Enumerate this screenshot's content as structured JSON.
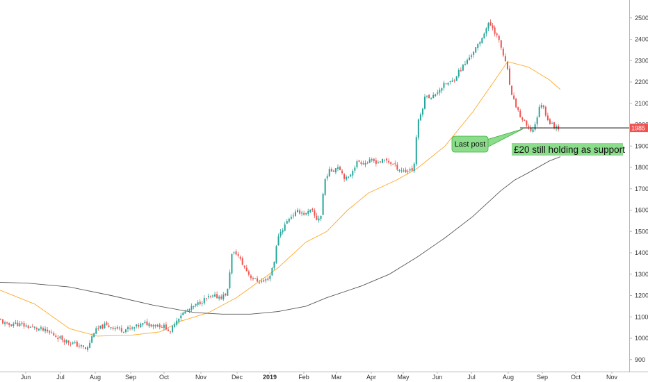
{
  "chart_data": {
    "type": "candlestick",
    "title": "",
    "xlabel": "",
    "ylabel": "",
    "x_ticks": [
      "Jun",
      "Jul",
      "Aug",
      "Sep",
      "Oct",
      "Nov",
      "Dec",
      "2019",
      "Feb",
      "Mar",
      "Apr",
      "May",
      "Jun",
      "Jul",
      "Aug",
      "Sep",
      "Oct",
      "Nov"
    ],
    "y_ticks": [
      "900",
      "1000",
      "1100",
      "1200",
      "1300",
      "1400",
      "1500",
      "1600",
      "1700",
      "1800",
      "1900",
      "2000",
      "2100",
      "2200",
      "2300",
      "2400",
      "2500"
    ],
    "ylim": [
      870,
      2540
    ],
    "grid": false,
    "last_price": "1985",
    "colors": {
      "up": "#26a69a",
      "down": "#ef5350",
      "ma_fast": "#ffa726",
      "ma_slow": "#555555",
      "support": "#000000",
      "annotation_fill": "#8bdc8b",
      "annotation_border": "#3fae3f",
      "price_label": "#ef5350"
    },
    "close_path": [
      [
        0,
        1085
      ],
      [
        10,
        1060
      ],
      [
        20,
        1070
      ],
      [
        40,
        1055
      ],
      [
        60,
        1040
      ],
      [
        75,
        1020
      ],
      [
        90,
        995
      ],
      [
        105,
        975
      ],
      [
        118,
        960
      ],
      [
        125,
        945
      ],
      [
        135,
        1030
      ],
      [
        150,
        1060
      ],
      [
        160,
        1055
      ],
      [
        175,
        1040
      ],
      [
        190,
        1045
      ],
      [
        200,
        1060
      ],
      [
        210,
        1070
      ],
      [
        220,
        1065
      ],
      [
        230,
        1060
      ],
      [
        240,
        1050
      ],
      [
        245,
        1020
      ],
      [
        250,
        1070
      ],
      [
        260,
        1110
      ],
      [
        270,
        1130
      ],
      [
        280,
        1150
      ],
      [
        290,
        1175
      ],
      [
        300,
        1190
      ],
      [
        310,
        1195
      ],
      [
        320,
        1195
      ],
      [
        327,
        1215
      ],
      [
        333,
        1390
      ],
      [
        340,
        1400
      ],
      [
        350,
        1340
      ],
      [
        360,
        1290
      ],
      [
        368,
        1270
      ],
      [
        380,
        1265
      ],
      [
        388,
        1290
      ],
      [
        395,
        1370
      ],
      [
        400,
        1480
      ],
      [
        408,
        1520
      ],
      [
        416,
        1565
      ],
      [
        422,
        1580
      ],
      [
        430,
        1595
      ],
      [
        440,
        1580
      ],
      [
        448,
        1600
      ],
      [
        455,
        1555
      ],
      [
        462,
        1575
      ],
      [
        466,
        1730
      ],
      [
        472,
        1780
      ],
      [
        480,
        1790
      ],
      [
        487,
        1810
      ],
      [
        494,
        1760
      ],
      [
        500,
        1740
      ],
      [
        507,
        1790
      ],
      [
        515,
        1830
      ],
      [
        525,
        1820
      ],
      [
        535,
        1830
      ],
      [
        545,
        1825
      ],
      [
        555,
        1835
      ],
      [
        565,
        1815
      ],
      [
        575,
        1790
      ],
      [
        585,
        1780
      ],
      [
        590,
        1795
      ],
      [
        595,
        1785
      ],
      [
        600,
        1995
      ],
      [
        606,
        2060
      ],
      [
        613,
        2150
      ],
      [
        620,
        2120
      ],
      [
        630,
        2160
      ],
      [
        640,
        2190
      ],
      [
        650,
        2200
      ],
      [
        660,
        2250
      ],
      [
        670,
        2290
      ],
      [
        680,
        2340
      ],
      [
        690,
        2380
      ],
      [
        697,
        2440
      ],
      [
        703,
        2470
      ],
      [
        708,
        2460
      ],
      [
        714,
        2420
      ],
      [
        720,
        2370
      ],
      [
        726,
        2300
      ],
      [
        730,
        2250
      ],
      [
        736,
        2130
      ],
      [
        742,
        2090
      ],
      [
        748,
        2040
      ],
      [
        754,
        2010
      ],
      [
        760,
        1980
      ],
      [
        766,
        1970
      ],
      [
        772,
        2030
      ],
      [
        778,
        2105
      ],
      [
        784,
        2060
      ],
      [
        790,
        2010
      ],
      [
        796,
        1995
      ],
      [
        802,
        1990
      ],
      [
        806,
        1985
      ]
    ],
    "series": [
      {
        "name": "",
        "color": "#ffa726",
        "points": [
          [
            0,
            1225
          ],
          [
            50,
            1160
          ],
          [
            100,
            1045
          ],
          [
            140,
            1010
          ],
          [
            190,
            1015
          ],
          [
            230,
            1030
          ],
          [
            260,
            1080
          ],
          [
            300,
            1120
          ],
          [
            340,
            1190
          ],
          [
            370,
            1260
          ],
          [
            400,
            1330
          ],
          [
            440,
            1450
          ],
          [
            470,
            1500
          ],
          [
            500,
            1600
          ],
          [
            530,
            1680
          ],
          [
            570,
            1740
          ],
          [
            600,
            1795
          ],
          [
            640,
            1900
          ],
          [
            680,
            2060
          ],
          [
            710,
            2200
          ],
          [
            730,
            2295
          ],
          [
            760,
            2270
          ],
          [
            790,
            2210
          ],
          [
            806,
            2165
          ]
        ]
      },
      {
        "name": "",
        "color": "#555555",
        "points": [
          [
            0,
            1262
          ],
          [
            40,
            1258
          ],
          [
            100,
            1240
          ],
          [
            160,
            1200
          ],
          [
            220,
            1155
          ],
          [
            280,
            1120
          ],
          [
            320,
            1113
          ],
          [
            360,
            1113
          ],
          [
            400,
            1125
          ],
          [
            440,
            1150
          ],
          [
            470,
            1190
          ],
          [
            520,
            1245
          ],
          [
            560,
            1300
          ],
          [
            600,
            1380
          ],
          [
            640,
            1470
          ],
          [
            680,
            1570
          ],
          [
            720,
            1690
          ],
          [
            740,
            1740
          ],
          [
            760,
            1775
          ],
          [
            790,
            1830
          ],
          [
            806,
            1850
          ]
        ]
      }
    ],
    "support_line": {
      "value": 1985,
      "x_start": 748,
      "x_end": 905
    },
    "annotations": [
      {
        "text": "Last post",
        "target": [
          752,
          1980
        ]
      },
      {
        "text": "£20 still holding as support"
      }
    ]
  }
}
